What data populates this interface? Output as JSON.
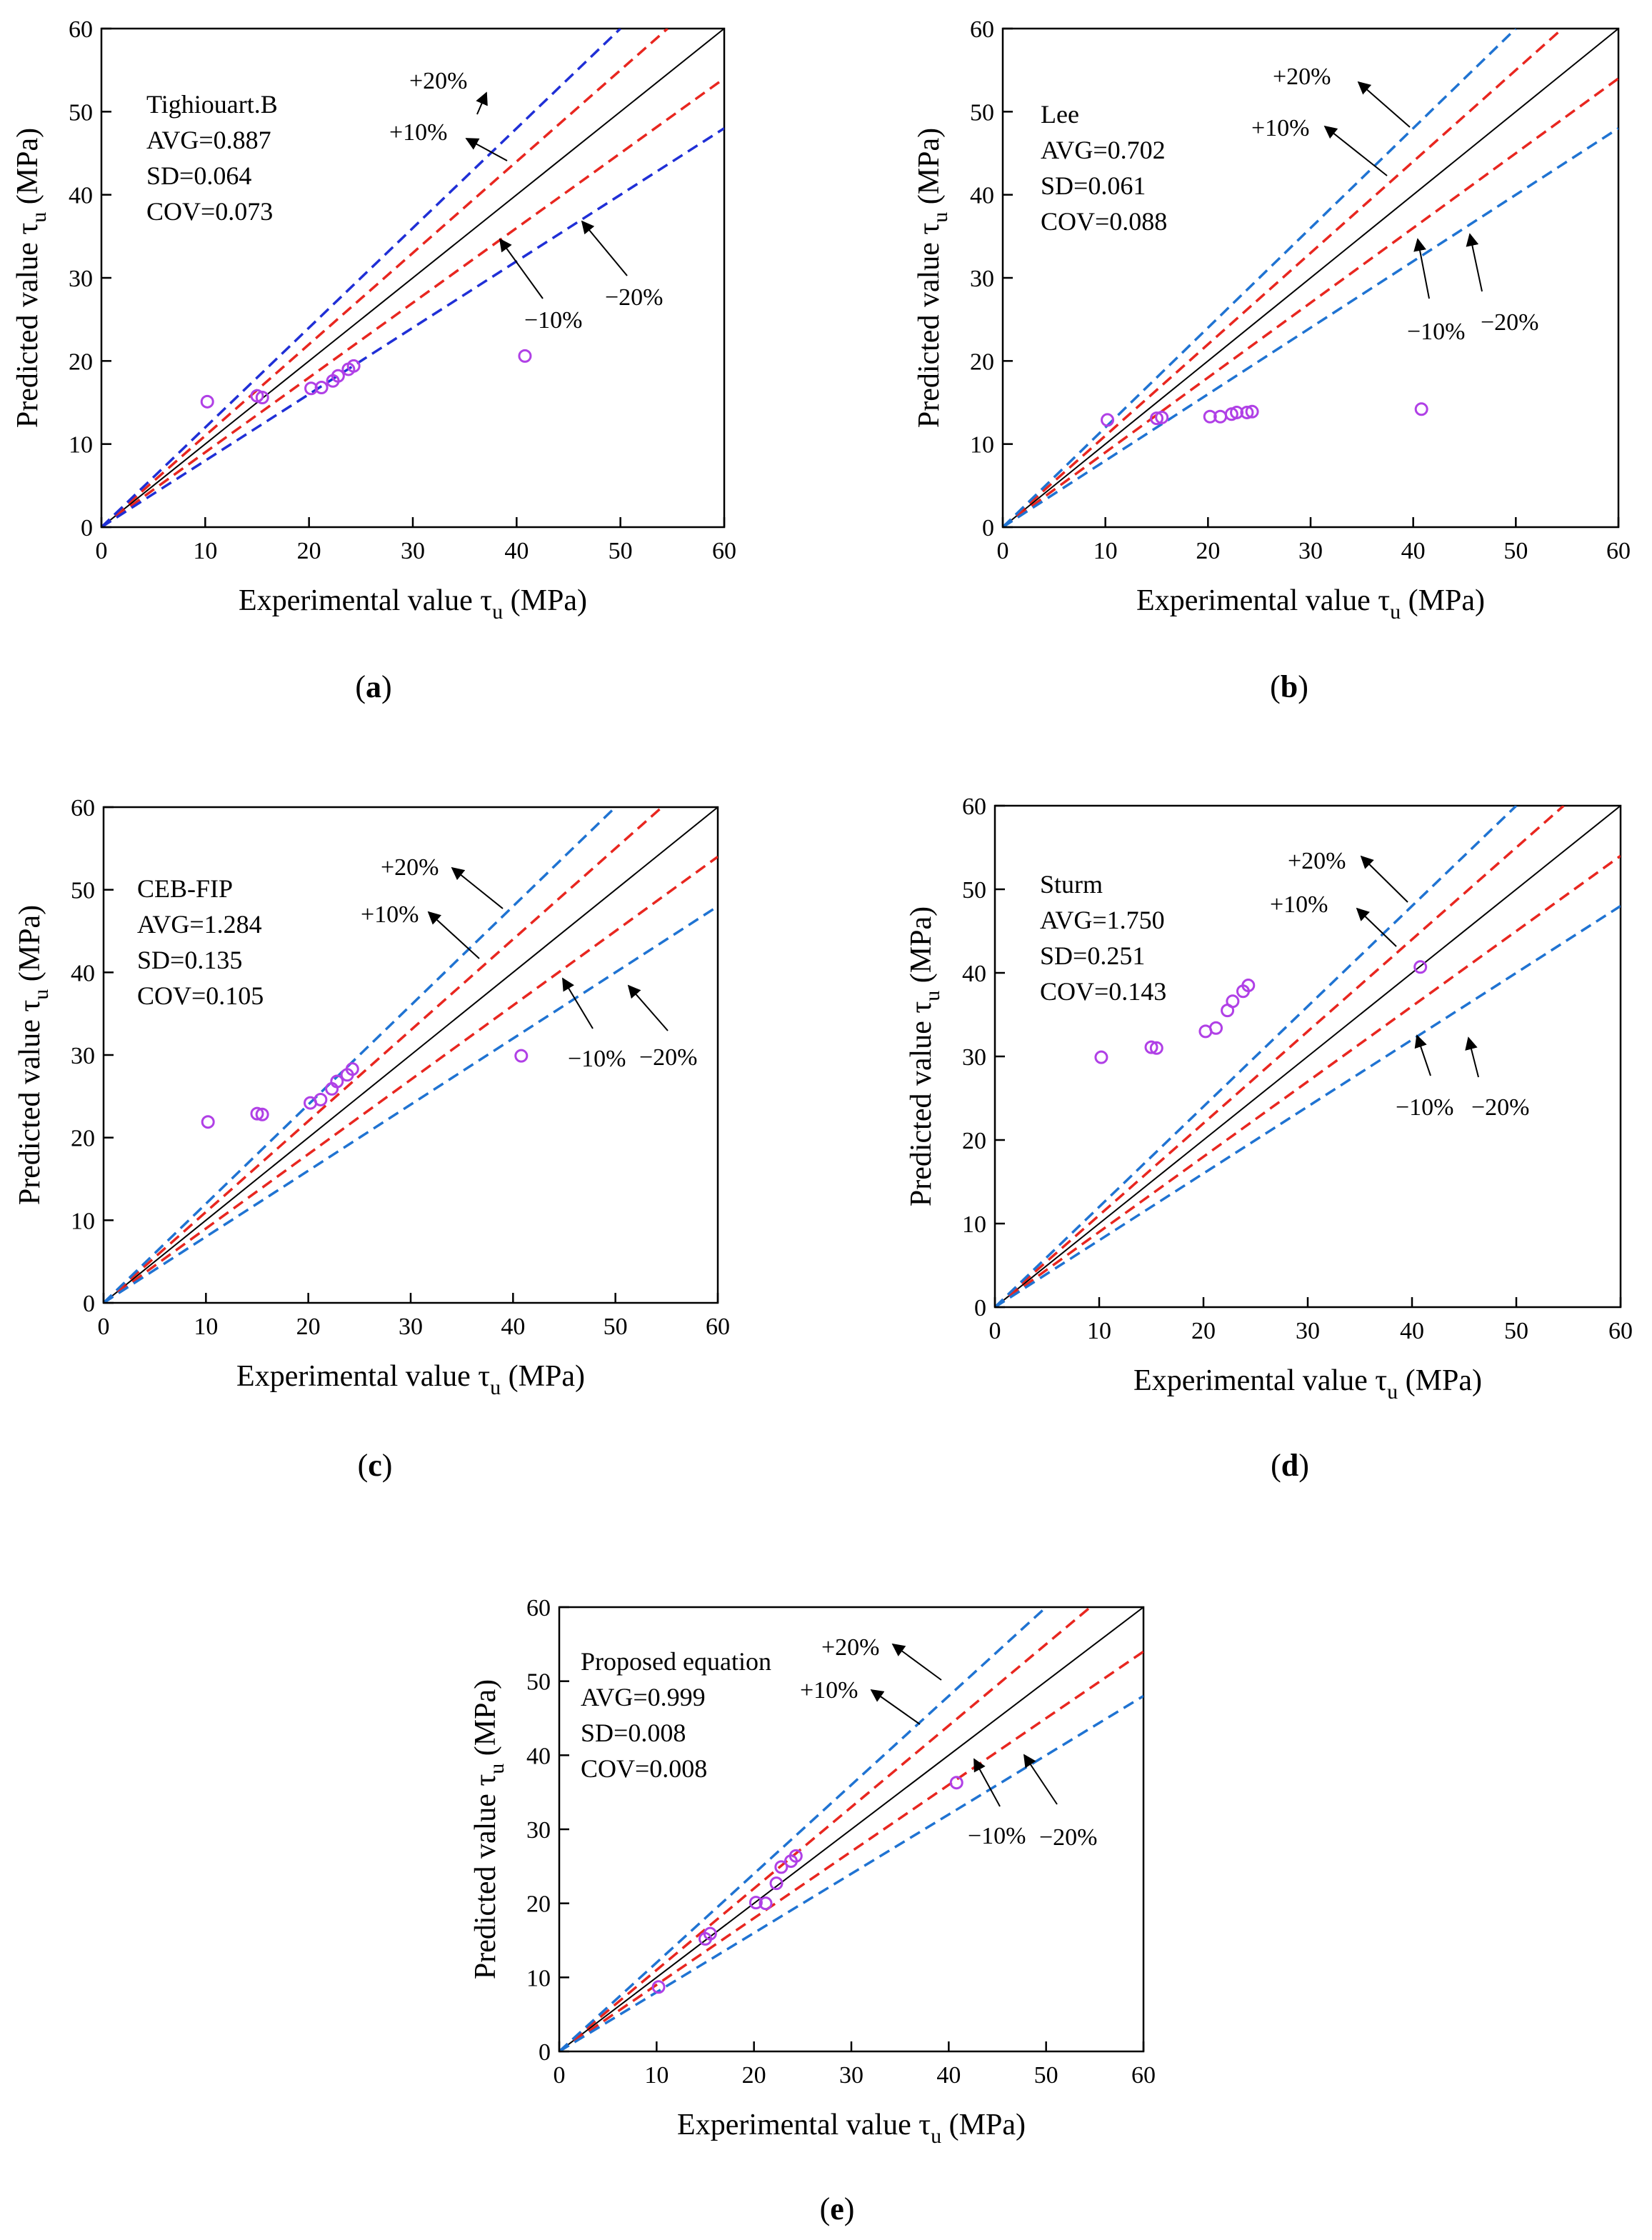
{
  "figure": {
    "colors": {
      "identity": "#000000",
      "band10": "#e8261f",
      "band20_a": "#1f2fd6",
      "band20_other": "#1f73d2",
      "points": "#b040e6",
      "arrow": "#000000"
    }
  },
  "chart_data": [
    {
      "id": "a",
      "type": "scatter",
      "caption": "a",
      "title": "",
      "xlabel": "Experimental value τ",
      "xlabel_sub": "u",
      "xlabel_unit": " (MPa)",
      "ylabel": "Predicted value τ",
      "ylabel_sub": "u",
      "ylabel_unit": " (MPa)",
      "xlim": [
        0,
        60
      ],
      "ylim": [
        0,
        60
      ],
      "xticks": [
        "0",
        "10",
        "20",
        "30",
        "40",
        "50",
        "60"
      ],
      "yticks": [
        "0",
        "10",
        "20",
        "30",
        "40",
        "50",
        "60"
      ],
      "grid": false,
      "reference_lines": [
        {
          "kind": "identity",
          "slope": 1.0
        },
        {
          "kind": "band10",
          "slope": 1.1
        },
        {
          "kind": "band10",
          "slope": 0.9
        },
        {
          "kind": "band20",
          "slope": 1.2
        },
        {
          "kind": "band20",
          "slope": 0.8
        }
      ],
      "stats": {
        "method": "Tighiouart.B",
        "avg": "AVG=0.887",
        "sd": "SD=0.064",
        "cov": "COV=0.073"
      },
      "band_labels": {
        "plus20": "+20%",
        "plus10": "+10%",
        "minus10": "−10%",
        "minus20": "−20%"
      },
      "points": {
        "x": [
          10.2,
          15.0,
          15.5,
          20.2,
          21.2,
          22.3,
          22.8,
          23.8,
          24.3,
          40.8
        ],
        "y": [
          15.1,
          15.8,
          15.6,
          16.7,
          16.8,
          17.6,
          18.2,
          19.0,
          19.4,
          20.6
        ]
      }
    },
    {
      "id": "b",
      "type": "scatter",
      "caption": "b",
      "title": "",
      "xlabel": "Experimental value τ",
      "xlabel_sub": "u",
      "xlabel_unit": " (MPa)",
      "ylabel": "Predicted value τ",
      "ylabel_sub": "u",
      "ylabel_unit": " (MPa)",
      "xlim": [
        0,
        60
      ],
      "ylim": [
        0,
        60
      ],
      "xticks": [
        "0",
        "10",
        "20",
        "30",
        "40",
        "50",
        "60"
      ],
      "yticks": [
        "0",
        "10",
        "20",
        "30",
        "40",
        "50",
        "60"
      ],
      "grid": false,
      "reference_lines": [
        {
          "kind": "identity",
          "slope": 1.0
        },
        {
          "kind": "band10",
          "slope": 1.1
        },
        {
          "kind": "band10",
          "slope": 0.9
        },
        {
          "kind": "band20",
          "slope": 1.2
        },
        {
          "kind": "band20",
          "slope": 0.8
        }
      ],
      "stats": {
        "method": "Lee",
        "avg": "AVG=0.702",
        "sd": "SD=0.061",
        "cov": "COV=0.088"
      },
      "band_labels": {
        "plus20": "+20%",
        "plus10": "+10%",
        "minus10": "−10%",
        "minus20": "−20%"
      },
      "points": {
        "x": [
          10.2,
          15.0,
          15.5,
          20.2,
          21.2,
          22.3,
          22.8,
          23.8,
          24.3,
          40.8
        ],
        "y": [
          12.9,
          13.1,
          13.2,
          13.3,
          13.3,
          13.6,
          13.8,
          13.8,
          13.9,
          14.2
        ]
      }
    },
    {
      "id": "c",
      "type": "scatter",
      "caption": "c",
      "title": "",
      "xlabel": "Experimental value τ",
      "xlabel_sub": "u",
      "xlabel_unit": " (MPa)",
      "ylabel": "Predicted value τ",
      "ylabel_sub": "u",
      "ylabel_unit": " (MPa)",
      "xlim": [
        0,
        60
      ],
      "ylim": [
        0,
        60
      ],
      "xticks": [
        "0",
        "10",
        "20",
        "30",
        "40",
        "50",
        "60"
      ],
      "yticks": [
        "0",
        "10",
        "20",
        "30",
        "40",
        "50",
        "60"
      ],
      "grid": false,
      "reference_lines": [
        {
          "kind": "identity",
          "slope": 1.0
        },
        {
          "kind": "band10",
          "slope": 1.1
        },
        {
          "kind": "band10",
          "slope": 0.9
        },
        {
          "kind": "band20",
          "slope": 1.2
        },
        {
          "kind": "band20",
          "slope": 0.8
        }
      ],
      "stats": {
        "method": "CEB-FIP",
        "avg": "AVG=1.284",
        "sd": "SD=0.135",
        "cov": "COV=0.105"
      },
      "band_labels": {
        "plus20": "+20%",
        "plus10": "+10%",
        "minus10": "−10%",
        "minus20": "−20%"
      },
      "points": {
        "x": [
          10.2,
          15.0,
          15.5,
          20.2,
          21.2,
          22.3,
          22.8,
          23.8,
          24.3,
          40.8
        ],
        "y": [
          21.9,
          22.9,
          22.8,
          24.2,
          24.6,
          25.9,
          26.8,
          27.6,
          28.3,
          29.9
        ]
      }
    },
    {
      "id": "d",
      "type": "scatter",
      "caption": "d",
      "title": "",
      "xlabel": "Experimental value τ",
      "xlabel_sub": "u",
      "xlabel_unit": " (MPa)",
      "ylabel": "Predicted value τ",
      "ylabel_sub": "u",
      "ylabel_unit": " (MPa)",
      "xlim": [
        0,
        60
      ],
      "ylim": [
        0,
        60
      ],
      "xticks": [
        "0",
        "10",
        "20",
        "30",
        "40",
        "50",
        "60"
      ],
      "yticks": [
        "0",
        "10",
        "20",
        "30",
        "40",
        "50",
        "60"
      ],
      "grid": false,
      "reference_lines": [
        {
          "kind": "identity",
          "slope": 1.0
        },
        {
          "kind": "band10",
          "slope": 1.1
        },
        {
          "kind": "band10",
          "slope": 0.9
        },
        {
          "kind": "band20",
          "slope": 1.2
        },
        {
          "kind": "band20",
          "slope": 0.8
        }
      ],
      "stats": {
        "method": "Sturm",
        "avg": "AVG=1.750",
        "sd": "SD=0.251",
        "cov": "COV=0.143"
      },
      "band_labels": {
        "plus20": "+20%",
        "plus10": "+10%",
        "minus10": "−10%",
        "minus20": "−20%"
      },
      "points": {
        "x": [
          10.2,
          15.0,
          15.5,
          20.2,
          21.2,
          22.3,
          22.8,
          23.8,
          24.3,
          40.8
        ],
        "y": [
          29.9,
          31.1,
          31.0,
          33.0,
          33.4,
          35.5,
          36.6,
          37.8,
          38.5,
          40.7
        ]
      }
    },
    {
      "id": "e",
      "type": "scatter",
      "caption": "e",
      "title": "",
      "xlabel": "Experimental value τ",
      "xlabel_sub": "u",
      "xlabel_unit": " (MPa)",
      "ylabel": "Predicted value τ",
      "ylabel_sub": "u",
      "ylabel_unit": " (MPa)",
      "xlim": [
        0,
        60
      ],
      "ylim": [
        0,
        60
      ],
      "xticks": [
        "0",
        "10",
        "20",
        "30",
        "40",
        "50",
        "60"
      ],
      "yticks": [
        "0",
        "10",
        "20",
        "30",
        "40",
        "50",
        "60"
      ],
      "grid": false,
      "reference_lines": [
        {
          "kind": "identity",
          "slope": 1.0
        },
        {
          "kind": "band10",
          "slope": 1.1
        },
        {
          "kind": "band10",
          "slope": 0.9
        },
        {
          "kind": "band20",
          "slope": 1.2
        },
        {
          "kind": "band20",
          "slope": 0.8
        }
      ],
      "stats": {
        "method": "Proposed equation",
        "avg": "AVG=0.999",
        "sd": "SD=0.008",
        "cov": "COV=0.008"
      },
      "band_labels": {
        "plus20": "+20%",
        "plus10": "+10%",
        "minus10": "−10%",
        "minus20": "−20%"
      },
      "points": {
        "x": [
          10.2,
          15.0,
          15.5,
          20.2,
          21.2,
          22.3,
          22.8,
          23.8,
          24.3,
          40.8
        ],
        "y": [
          8.7,
          15.2,
          15.9,
          20.1,
          20.0,
          22.7,
          24.9,
          25.7,
          26.4,
          36.3
        ]
      }
    }
  ]
}
